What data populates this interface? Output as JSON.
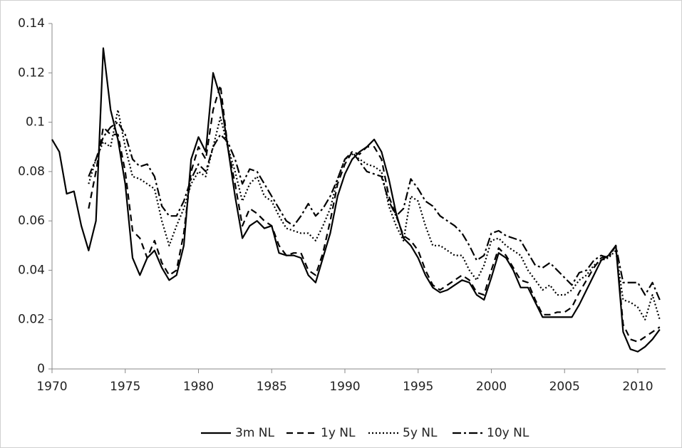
{
  "chart_data": {
    "type": "line",
    "x": [
      1970,
      1970.5,
      1971,
      1971.5,
      1972,
      1972.5,
      1973,
      1973.5,
      1974,
      1974.5,
      1975,
      1975.5,
      1976,
      1976.5,
      1977,
      1977.5,
      1978,
      1978.5,
      1979,
      1979.5,
      1980,
      1980.5,
      1981,
      1981.5,
      1982,
      1982.5,
      1983,
      1983.5,
      1984,
      1984.5,
      1985,
      1985.5,
      1986,
      1986.5,
      1987,
      1987.5,
      1988,
      1988.5,
      1989,
      1989.5,
      1990,
      1990.5,
      1991,
      1991.5,
      1992,
      1992.5,
      1993,
      1993.5,
      1994,
      1994.5,
      1995,
      1995.5,
      1996,
      1996.5,
      1997,
      1997.5,
      1998,
      1998.5,
      1999,
      1999.5,
      2000,
      2000.5,
      2001,
      2001.5,
      2002,
      2002.5,
      2003,
      2003.5,
      2004,
      2004.5,
      2005,
      2005.5,
      2006,
      2006.5,
      2007,
      2007.5,
      2008,
      2008.5,
      2009,
      2009.5,
      2010,
      2010.5,
      2011,
      2011.5
    ],
    "series": [
      {
        "name": "3m NL",
        "color": "#000000",
        "dash": "none",
        "values": [
          0.093,
          0.088,
          0.071,
          0.072,
          0.058,
          0.048,
          0.06,
          0.13,
          0.105,
          0.093,
          0.075,
          0.045,
          0.038,
          0.045,
          0.048,
          0.041,
          0.036,
          0.038,
          0.05,
          0.085,
          0.094,
          0.088,
          0.12,
          0.11,
          0.09,
          0.07,
          0.053,
          0.058,
          0.06,
          0.057,
          0.058,
          0.047,
          0.046,
          0.046,
          0.045,
          0.038,
          0.035,
          0.045,
          0.055,
          0.07,
          0.079,
          0.085,
          0.088,
          0.09,
          0.093,
          0.088,
          0.077,
          0.063,
          0.053,
          0.05,
          0.045,
          0.038,
          0.033,
          0.031,
          0.032,
          0.034,
          0.036,
          0.035,
          0.03,
          0.028,
          0.037,
          0.047,
          0.045,
          0.04,
          0.033,
          0.033,
          0.027,
          0.021,
          0.021,
          0.021,
          0.021,
          0.021,
          0.026,
          0.032,
          0.038,
          0.044,
          0.046,
          0.05,
          0.015,
          0.008,
          0.007,
          0.009,
          0.012,
          0.016
        ]
      },
      {
        "name": "1y NL",
        "color": "#000000",
        "dash": "9,6",
        "values": [
          null,
          null,
          null,
          null,
          null,
          0.065,
          0.08,
          0.098,
          0.095,
          0.095,
          0.08,
          0.056,
          0.053,
          0.045,
          0.052,
          0.043,
          0.038,
          0.04,
          0.055,
          0.08,
          0.09,
          0.085,
          0.105,
          0.115,
          0.09,
          0.075,
          0.058,
          0.065,
          0.063,
          0.06,
          0.058,
          0.05,
          0.046,
          0.047,
          0.047,
          0.04,
          0.038,
          0.047,
          0.06,
          0.075,
          0.083,
          0.088,
          0.087,
          0.09,
          0.09,
          0.085,
          0.07,
          0.062,
          0.054,
          0.052,
          0.048,
          0.04,
          0.034,
          0.032,
          0.034,
          0.036,
          0.038,
          0.036,
          0.031,
          0.03,
          0.04,
          0.049,
          0.046,
          0.041,
          0.036,
          0.035,
          0.028,
          0.022,
          0.022,
          0.023,
          0.023,
          0.025,
          0.031,
          0.036,
          0.041,
          0.045,
          0.046,
          0.05,
          0.018,
          0.012,
          0.011,
          0.013,
          0.015,
          0.017
        ]
      },
      {
        "name": "5y NL",
        "color": "#000000",
        "dash": "2,3",
        "values": [
          null,
          null,
          null,
          null,
          null,
          0.075,
          0.085,
          0.092,
          0.09,
          0.105,
          0.09,
          0.078,
          0.077,
          0.075,
          0.073,
          0.06,
          0.05,
          0.058,
          0.065,
          0.075,
          0.08,
          0.078,
          0.09,
          0.102,
          0.09,
          0.08,
          0.068,
          0.075,
          0.078,
          0.07,
          0.068,
          0.062,
          0.057,
          0.056,
          0.055,
          0.055,
          0.052,
          0.058,
          0.065,
          0.077,
          0.085,
          0.087,
          0.085,
          0.083,
          0.082,
          0.08,
          0.066,
          0.058,
          0.052,
          0.07,
          0.068,
          0.058,
          0.05,
          0.05,
          0.048,
          0.046,
          0.046,
          0.04,
          0.036,
          0.042,
          0.052,
          0.053,
          0.05,
          0.048,
          0.046,
          0.04,
          0.036,
          0.032,
          0.034,
          0.03,
          0.03,
          0.032,
          0.036,
          0.038,
          0.042,
          0.044,
          0.045,
          0.048,
          0.028,
          0.027,
          0.025,
          0.02,
          0.03,
          0.02
        ]
      },
      {
        "name": "10y NL",
        "color": "#000000",
        "dash": "12,4,3,4",
        "values": [
          null,
          null,
          null,
          null,
          null,
          0.078,
          0.085,
          0.094,
          0.098,
          0.1,
          0.095,
          0.085,
          0.082,
          0.083,
          0.078,
          0.066,
          0.062,
          0.062,
          0.068,
          0.077,
          0.083,
          0.08,
          0.09,
          0.095,
          0.092,
          0.085,
          0.075,
          0.081,
          0.08,
          0.075,
          0.07,
          0.065,
          0.06,
          0.058,
          0.062,
          0.067,
          0.062,
          0.065,
          0.07,
          0.077,
          0.085,
          0.088,
          0.084,
          0.08,
          0.079,
          0.078,
          0.068,
          0.062,
          0.065,
          0.077,
          0.073,
          0.068,
          0.066,
          0.062,
          0.06,
          0.058,
          0.055,
          0.05,
          0.044,
          0.046,
          0.055,
          0.056,
          0.054,
          0.053,
          0.052,
          0.047,
          0.042,
          0.041,
          0.043,
          0.04,
          0.037,
          0.034,
          0.039,
          0.04,
          0.044,
          0.046,
          0.045,
          0.05,
          0.035,
          0.035,
          0.035,
          0.03,
          0.035,
          0.028
        ]
      }
    ],
    "xlim": [
      1970,
      2011.9
    ],
    "xticks": [
      1970,
      1975,
      1980,
      1985,
      1990,
      1995,
      2000,
      2005,
      2010
    ],
    "ylim": [
      0,
      0.14
    ],
    "yticks": [
      0,
      0.02,
      0.04,
      0.06,
      0.08,
      0.1,
      0.12,
      0.14
    ],
    "grid": false,
    "legend": "bottom"
  }
}
